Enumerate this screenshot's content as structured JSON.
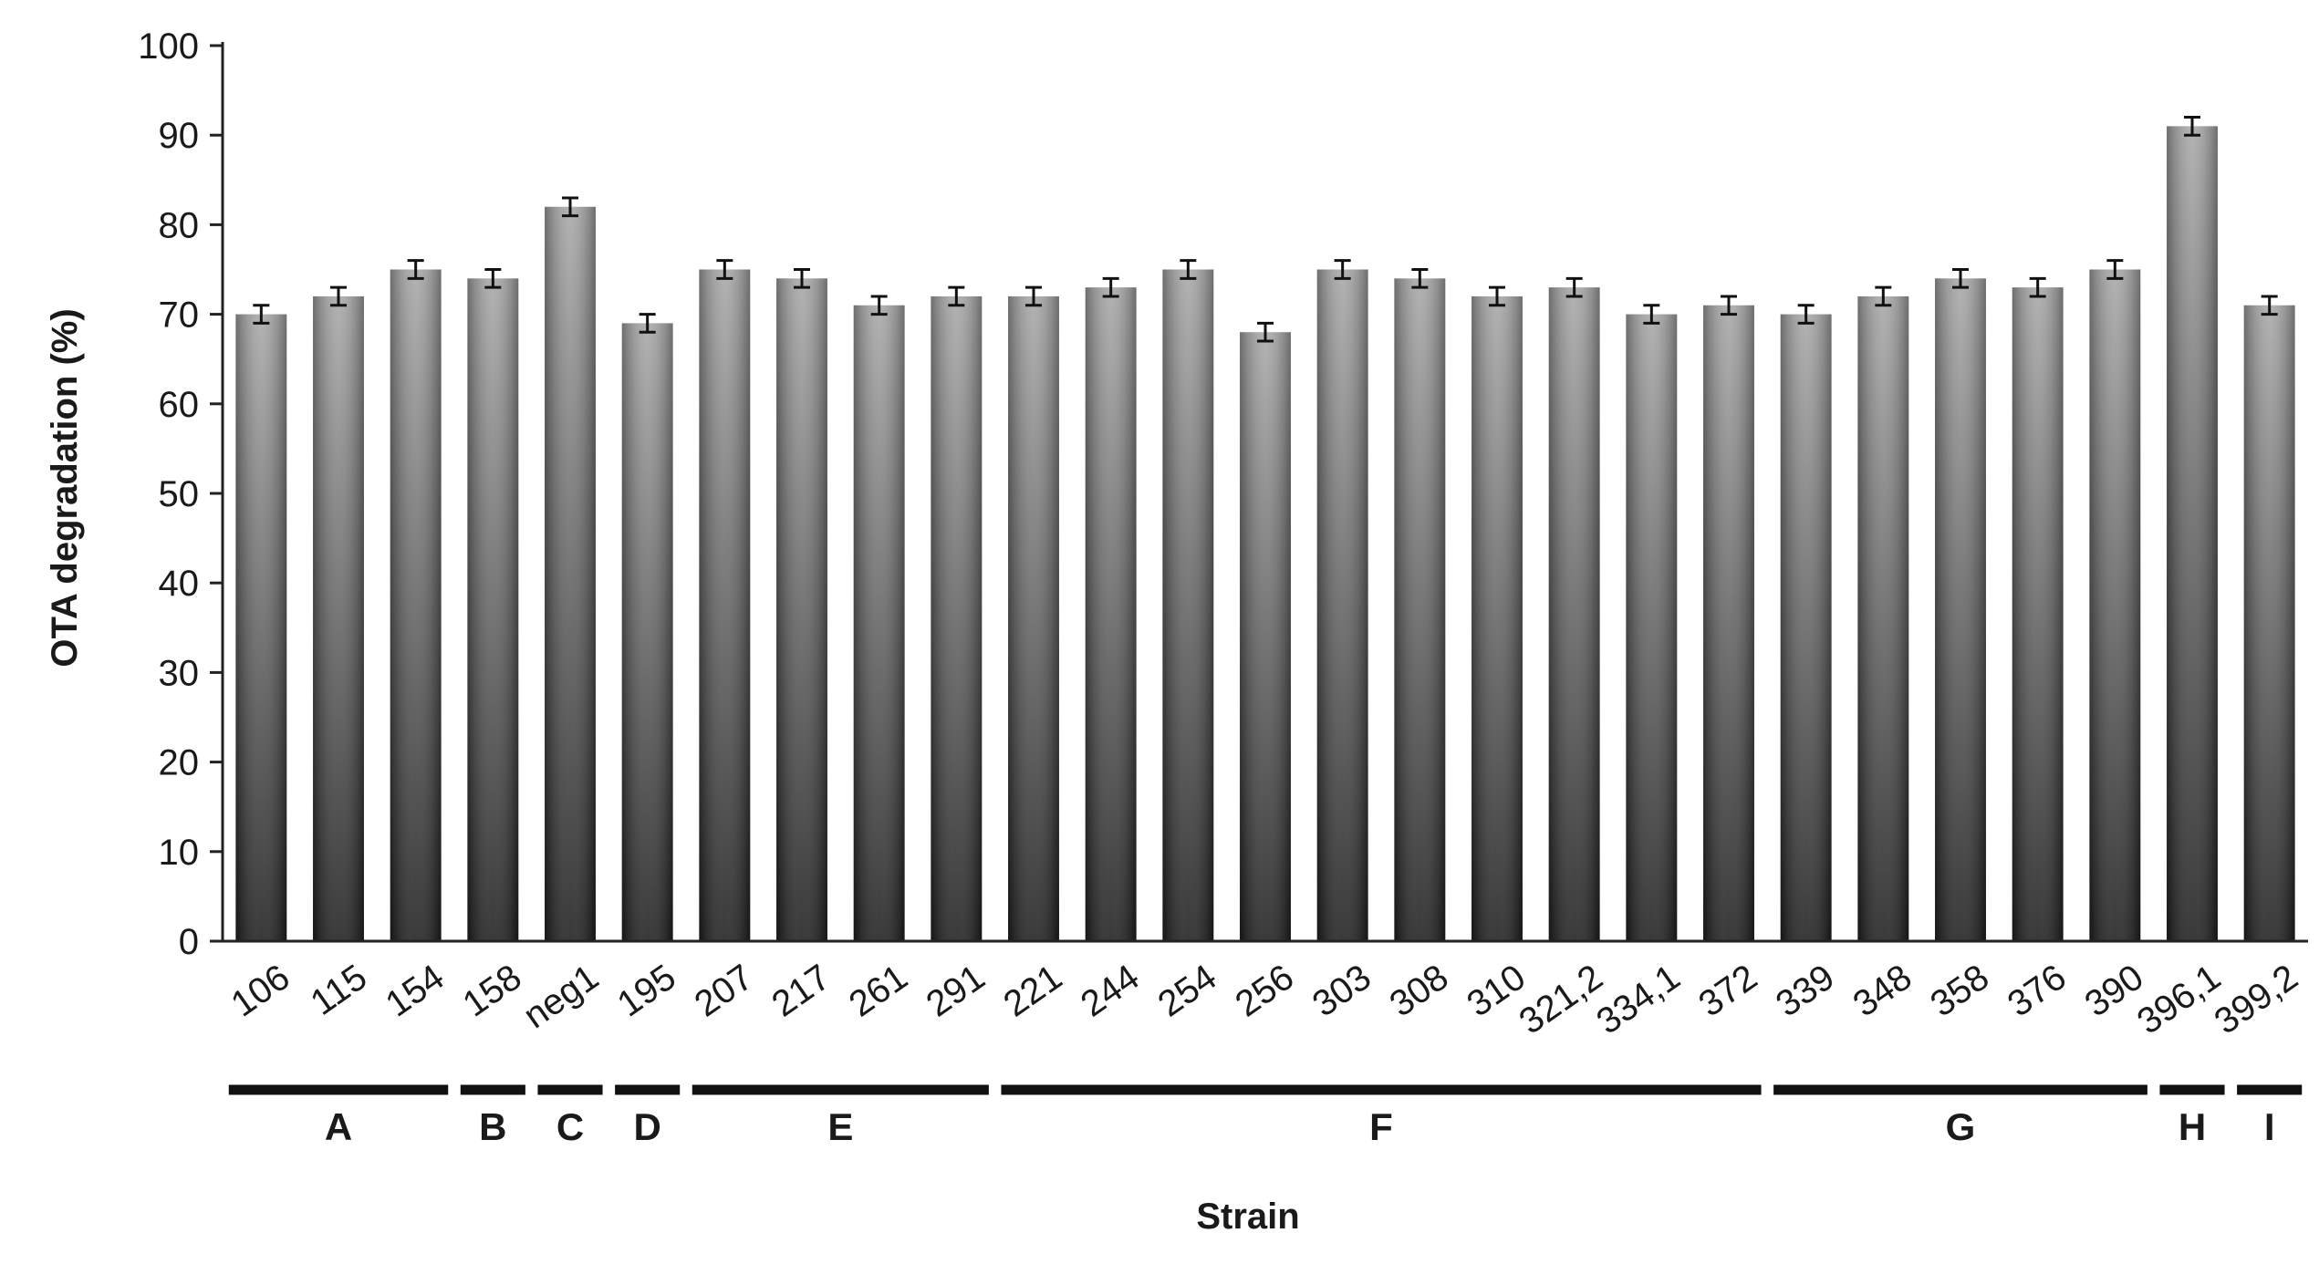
{
  "chart_data": {
    "type": "bar",
    "title": "",
    "xlabel": "Strain",
    "ylabel": "OTA degradation (%)",
    "ylim": [
      0,
      100
    ],
    "yticks": [
      0,
      10,
      20,
      30,
      40,
      50,
      60,
      70,
      80,
      90,
      100
    ],
    "grid": false,
    "legend": "none",
    "categories": [
      "106",
      "115",
      "154",
      "158",
      "neg1",
      "195",
      "207",
      "217",
      "261",
      "291",
      "221",
      "244",
      "254",
      "256",
      "303",
      "308",
      "310",
      "321,2",
      "334,1",
      "372",
      "339",
      "348",
      "358",
      "376",
      "390",
      "396,1",
      "399,2"
    ],
    "values": [
      70,
      72,
      75,
      74,
      82,
      69,
      75,
      74,
      71,
      72,
      72,
      73,
      75,
      68,
      75,
      74,
      72,
      73,
      70,
      71,
      70,
      72,
      74,
      73,
      75,
      91,
      71
    ],
    "errors": [
      1,
      1,
      1,
      1,
      1,
      1,
      1,
      1,
      1,
      1,
      1,
      1,
      1,
      1,
      1,
      1,
      1,
      1,
      1,
      1,
      1,
      1,
      1,
      1,
      1,
      1,
      1
    ],
    "groups": [
      {
        "label": "A",
        "start": 0,
        "end": 2
      },
      {
        "label": "B",
        "start": 3,
        "end": 3
      },
      {
        "label": "C",
        "start": 4,
        "end": 4
      },
      {
        "label": "D",
        "start": 5,
        "end": 5
      },
      {
        "label": "E",
        "start": 6,
        "end": 9
      },
      {
        "label": "F",
        "start": 10,
        "end": 19
      },
      {
        "label": "G",
        "start": 20,
        "end": 24
      },
      {
        "label": "H",
        "start": 25,
        "end": 25
      },
      {
        "label": "I",
        "start": 26,
        "end": 26
      }
    ],
    "colors": {
      "bar_top": "#a8a8a8",
      "bar_bottom": "#1e1e1e",
      "axis": "#222222",
      "group_line": "#111111"
    }
  }
}
